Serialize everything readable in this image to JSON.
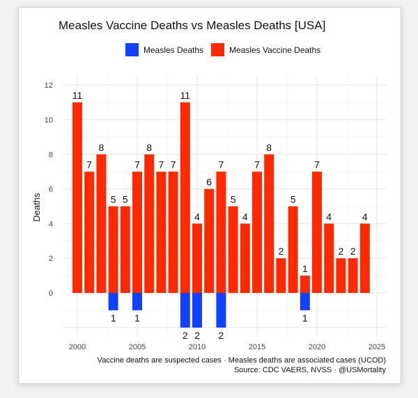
{
  "chart_data": {
    "type": "bar",
    "title": "Measles Vaccine Deaths vs Measles Deaths [USA]",
    "ylabel": "Deaths",
    "xlabel": "",
    "x_ticks": [
      2000,
      2005,
      2010,
      2015,
      2020,
      2025
    ],
    "y_ticks": [
      0,
      2,
      4,
      6,
      8,
      10,
      12
    ],
    "ylim": [
      -2,
      12.6
    ],
    "xlim": [
      1999.2,
      2025.4
    ],
    "grid": true,
    "legend_position": "top",
    "series": [
      {
        "name": "Measles Deaths",
        "color": "#1240ff",
        "points": [
          {
            "year": 2003,
            "value": 1
          },
          {
            "year": 2005,
            "value": 1
          },
          {
            "year": 2009,
            "value": 2
          },
          {
            "year": 2010,
            "value": 2
          },
          {
            "year": 2012,
            "value": 2
          },
          {
            "year": 2019,
            "value": 1
          }
        ]
      },
      {
        "name": "Measles Vaccine Deaths",
        "color": "#ff2a00",
        "points": [
          {
            "year": 2000,
            "value": 11
          },
          {
            "year": 2001,
            "value": 7
          },
          {
            "year": 2002,
            "value": 8
          },
          {
            "year": 2003,
            "value": 5
          },
          {
            "year": 2004,
            "value": 5
          },
          {
            "year": 2005,
            "value": 7
          },
          {
            "year": 2006,
            "value": 8
          },
          {
            "year": 2007,
            "value": 7
          },
          {
            "year": 2008,
            "value": 7
          },
          {
            "year": 2009,
            "value": 11
          },
          {
            "year": 2010,
            "value": 4
          },
          {
            "year": 2011,
            "value": 6
          },
          {
            "year": 2012,
            "value": 7
          },
          {
            "year": 2013,
            "value": 5
          },
          {
            "year": 2014,
            "value": 4
          },
          {
            "year": 2015,
            "value": 7
          },
          {
            "year": 2016,
            "value": 8
          },
          {
            "year": 2017,
            "value": 2
          },
          {
            "year": 2018,
            "value": 5
          },
          {
            "year": 2019,
            "value": 1
          },
          {
            "year": 2020,
            "value": 7
          },
          {
            "year": 2021,
            "value": 4
          },
          {
            "year": 2022,
            "value": 2
          },
          {
            "year": 2023,
            "value": 2
          },
          {
            "year": 2024,
            "value": 4
          }
        ]
      }
    ],
    "caption_line1": "Vaccine deaths are suspected cases · Measles deaths are associated cases (UCOD)",
    "caption_line2": "Source: CDC VAERS, NVSS · @USMortality"
  }
}
